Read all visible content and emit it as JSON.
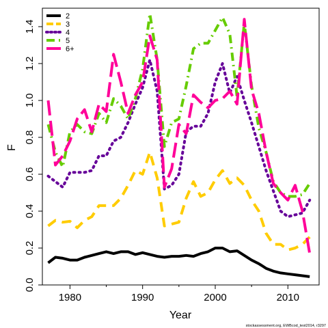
{
  "chart_data": {
    "type": "line",
    "xlabel": "Year",
    "ylabel": "F",
    "xlim": [
      1976.2,
      2014.3
    ],
    "ylim": [
      0,
      1.5
    ],
    "x_ticks": [
      1980,
      1990,
      2000,
      2010
    ],
    "y_ticks": [
      "0.0",
      "0.2",
      "0.4",
      "0.6",
      "0.8",
      "1.0",
      "1.2",
      "1.4"
    ],
    "legend_position": "top-left",
    "footnote": "stockassessment.org, EWBcod_test2014, r3297",
    "x": [
      1977,
      1978,
      1979,
      1980,
      1981,
      1982,
      1983,
      1984,
      1985,
      1986,
      1987,
      1988,
      1989,
      1990,
      1991,
      1992,
      1993,
      1994,
      1995,
      1996,
      1997,
      1998,
      1999,
      2000,
      2001,
      2002,
      2003,
      2004,
      2005,
      2006,
      2007,
      2008,
      2009,
      2010,
      2011,
      2012,
      2013
    ],
    "series": [
      {
        "name": "2",
        "color": "#000000",
        "dash": "",
        "values": [
          0.12,
          0.15,
          0.145,
          0.135,
          0.135,
          0.15,
          0.16,
          0.17,
          0.18,
          0.17,
          0.18,
          0.18,
          0.165,
          0.175,
          0.165,
          0.155,
          0.15,
          0.155,
          0.155,
          0.16,
          0.155,
          0.17,
          0.18,
          0.2,
          0.2,
          0.18,
          0.185,
          0.16,
          0.135,
          0.115,
          0.09,
          0.075,
          0.065,
          0.06,
          0.055,
          0.05,
          0.045
        ]
      },
      {
        "name": "3",
        "color": "#FFCC00",
        "dash": "14,9",
        "values": [
          0.32,
          0.35,
          0.34,
          0.345,
          0.31,
          0.35,
          0.37,
          0.43,
          0.43,
          0.43,
          0.47,
          0.54,
          0.62,
          0.6,
          0.72,
          0.58,
          0.32,
          0.33,
          0.34,
          0.47,
          0.56,
          0.48,
          0.5,
          0.57,
          0.62,
          0.55,
          0.58,
          0.54,
          0.46,
          0.4,
          0.28,
          0.22,
          0.22,
          0.19,
          0.2,
          0.22,
          0.26
        ]
      },
      {
        "name": "4",
        "color": "#660099",
        "dash": "2,6",
        "values": [
          0.59,
          0.56,
          0.53,
          0.61,
          0.61,
          0.61,
          0.62,
          0.7,
          0.7,
          0.78,
          0.8,
          0.88,
          0.98,
          1.07,
          1.22,
          1.05,
          0.52,
          0.54,
          0.6,
          0.83,
          0.86,
          0.86,
          0.93,
          1.1,
          1.2,
          1.04,
          1.13,
          1.0,
          0.88,
          0.75,
          0.62,
          0.51,
          0.4,
          0.37,
          0.38,
          0.39,
          0.46
        ]
      },
      {
        "name": "5",
        "color": "#66CC00",
        "dash": "12,6,2,6",
        "values": [
          0.87,
          0.72,
          0.64,
          0.83,
          0.87,
          0.83,
          0.82,
          0.93,
          0.88,
          1.01,
          0.97,
          0.9,
          1.01,
          1.17,
          1.47,
          1.22,
          0.75,
          0.88,
          0.9,
          1.08,
          1.28,
          1.31,
          1.31,
          1.38,
          1.45,
          1.36,
          1.02,
          1.42,
          1.08,
          0.85,
          0.72,
          0.56,
          0.5,
          0.48,
          0.48,
          0.49,
          0.55
        ]
      },
      {
        "name": "6+",
        "color": "#FF0099",
        "dash": "22,8",
        "values": [
          1.0,
          0.65,
          0.7,
          0.78,
          0.9,
          0.95,
          0.83,
          0.98,
          0.94,
          1.25,
          1.1,
          0.93,
          1.03,
          1.1,
          1.35,
          1.22,
          0.53,
          0.63,
          0.87,
          0.82,
          1.03,
          0.99,
          0.96,
          1.0,
          1.01,
          1.05,
          0.98,
          1.44,
          1.06,
          0.93,
          0.72,
          0.55,
          0.5,
          0.46,
          0.54,
          0.4,
          0.17
        ]
      }
    ]
  }
}
